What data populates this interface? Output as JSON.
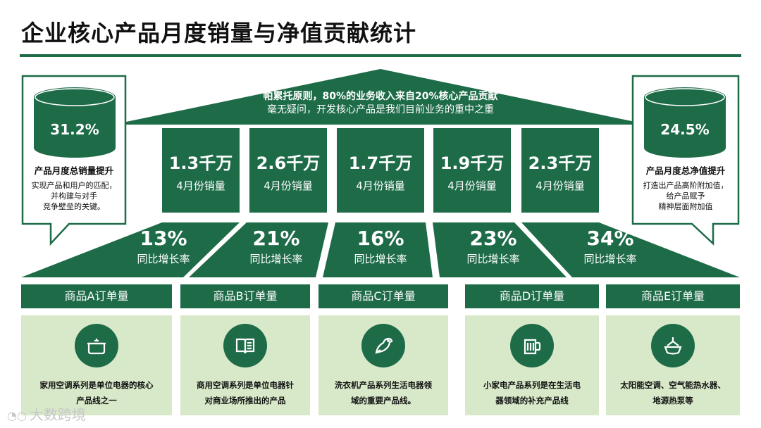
{
  "title": "企业核心产品月度销量与净值贡献统计",
  "roof": {
    "line1": "帕累托原则，80%的业务收入来自20%核心产品贡献",
    "line2": "毫无疑问，开发核心产品是我们目前业务的重中之重"
  },
  "left_callout": {
    "percent": "31.2%",
    "heading": "产品月度总销量提升",
    "body": [
      "实现产品和用户的匹配，",
      "并构建与对手",
      "竞争壁垒的关键。"
    ]
  },
  "right_callout": {
    "percent": "24.5%",
    "heading": "产品月度总净值提升",
    "body": [
      "打造出产品高阶附加值，",
      "给产品赋予",
      "精神层面附加值"
    ]
  },
  "pillars": [
    {
      "value": "1.3千万",
      "label": "4月份销量"
    },
    {
      "value": "2.6千万",
      "label": "4月份销量"
    },
    {
      "value": "1.7千万",
      "label": "4月份销量"
    },
    {
      "value": "1.9千万",
      "label": "4月份销量"
    },
    {
      "value": "2.3千万",
      "label": "4月份销量"
    }
  ],
  "growth_rates": [
    {
      "value": "13%",
      "label": "同比增长率"
    },
    {
      "value": "21%",
      "label": "同比增长率"
    },
    {
      "value": "16%",
      "label": "同比增长率"
    },
    {
      "value": "23%",
      "label": "同比增长率"
    },
    {
      "value": "34%",
      "label": "同比增长率"
    }
  ],
  "products": [
    {
      "order_label": "商品A订单量",
      "icon": "pot-icon",
      "desc": [
        "家用空调系列是单位电器的核心",
        "产品线之一"
      ]
    },
    {
      "order_label": "商品B订单量",
      "icon": "book-icon",
      "desc": [
        "商用空调系列是单位电器针",
        "对商业场所推出的产品"
      ]
    },
    {
      "order_label": "商品C订单量",
      "icon": "bird-icon",
      "desc": [
        "洗衣机产品系列生活电器领",
        "域的重要产品线。"
      ]
    },
    {
      "order_label": "商品D订单量",
      "icon": "mug-icon",
      "desc": [
        "小家电产品系列是在生活电",
        "器领域的补充产品线"
      ]
    },
    {
      "order_label": "商品E订单量",
      "icon": "ship-icon",
      "desc": [
        "太阳能空调、空气能热水器、",
        "地源热泵等"
      ]
    }
  ],
  "watermark": "大数跨境",
  "colors": {
    "primary": "#1e6b48",
    "card_bg": "#d8e9c9",
    "text": "#111111"
  }
}
